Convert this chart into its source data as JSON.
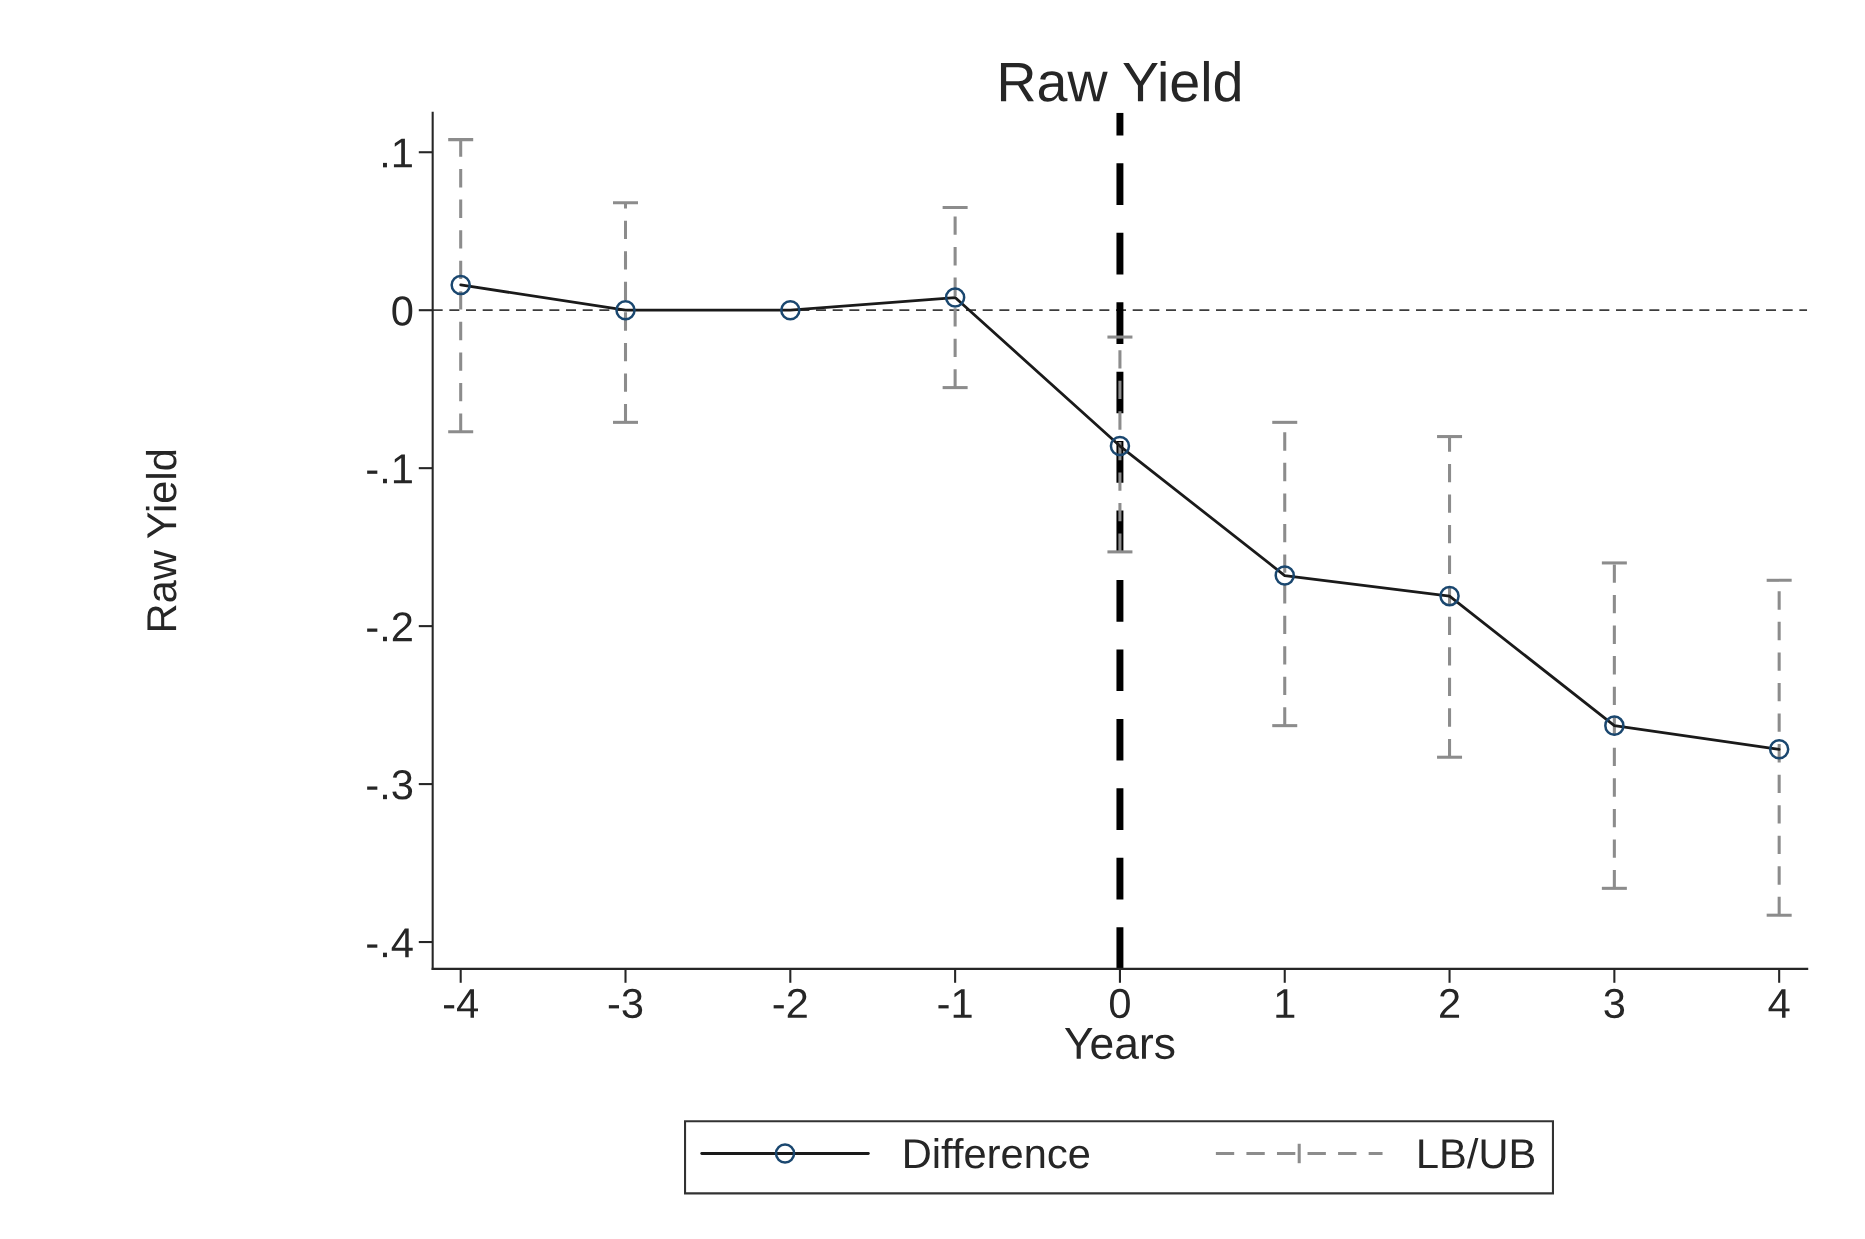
{
  "chart_data": {
    "type": "line",
    "title": "Raw Yield",
    "xlabel": "Years",
    "ylabel": "Raw Yield",
    "x": [
      -4,
      -3,
      -2,
      -1,
      0,
      1,
      2,
      3,
      4
    ],
    "series": [
      {
        "name": "Difference",
        "color": "#1a1a1a",
        "values": [
          0.016,
          0,
          0,
          0.008,
          -0.086,
          -0.168,
          -0.181,
          -0.263,
          -0.278
        ],
        "errors": [
          [
            -0.077,
            0.108
          ],
          [
            -0.071,
            0.068
          ],
          null,
          [
            -0.049,
            0.065
          ],
          [
            -0.153,
            -0.017
          ],
          [
            -0.263,
            -0.071
          ],
          [
            -0.283,
            -0.08
          ],
          [
            -0.366,
            -0.16
          ],
          [
            -0.383,
            -0.171
          ]
        ]
      }
    ],
    "annotations": [
      "LB/UB"
    ],
    "marker": "circle",
    "line_style": "solid",
    "xlim": [
      -4.17,
      4.17
    ],
    "xticks": [
      -4,
      -3,
      -2,
      -1,
      0,
      1,
      2,
      3,
      4
    ],
    "ylim": [
      -0.417,
      0.125
    ],
    "yticks": [
      {
        "value": -0.4,
        "label": "-.4"
      },
      {
        "value": -0.3,
        "label": "-.3"
      },
      {
        "value": -0.2,
        "label": "-.2"
      },
      {
        "value": -0.1,
        "label": "-.1"
      },
      {
        "value": 0,
        "label": "0"
      },
      {
        "value": 0.1,
        "label": ".1"
      }
    ],
    "ref_lines": [
      {
        "axis": "y",
        "value": 0,
        "color": "#3c3c3c",
        "line_style": "dashed"
      },
      {
        "axis": "x",
        "value": 0,
        "color": "#000000",
        "line_style": "dashed"
      }
    ],
    "grid": false,
    "legend": "bottom"
  }
}
